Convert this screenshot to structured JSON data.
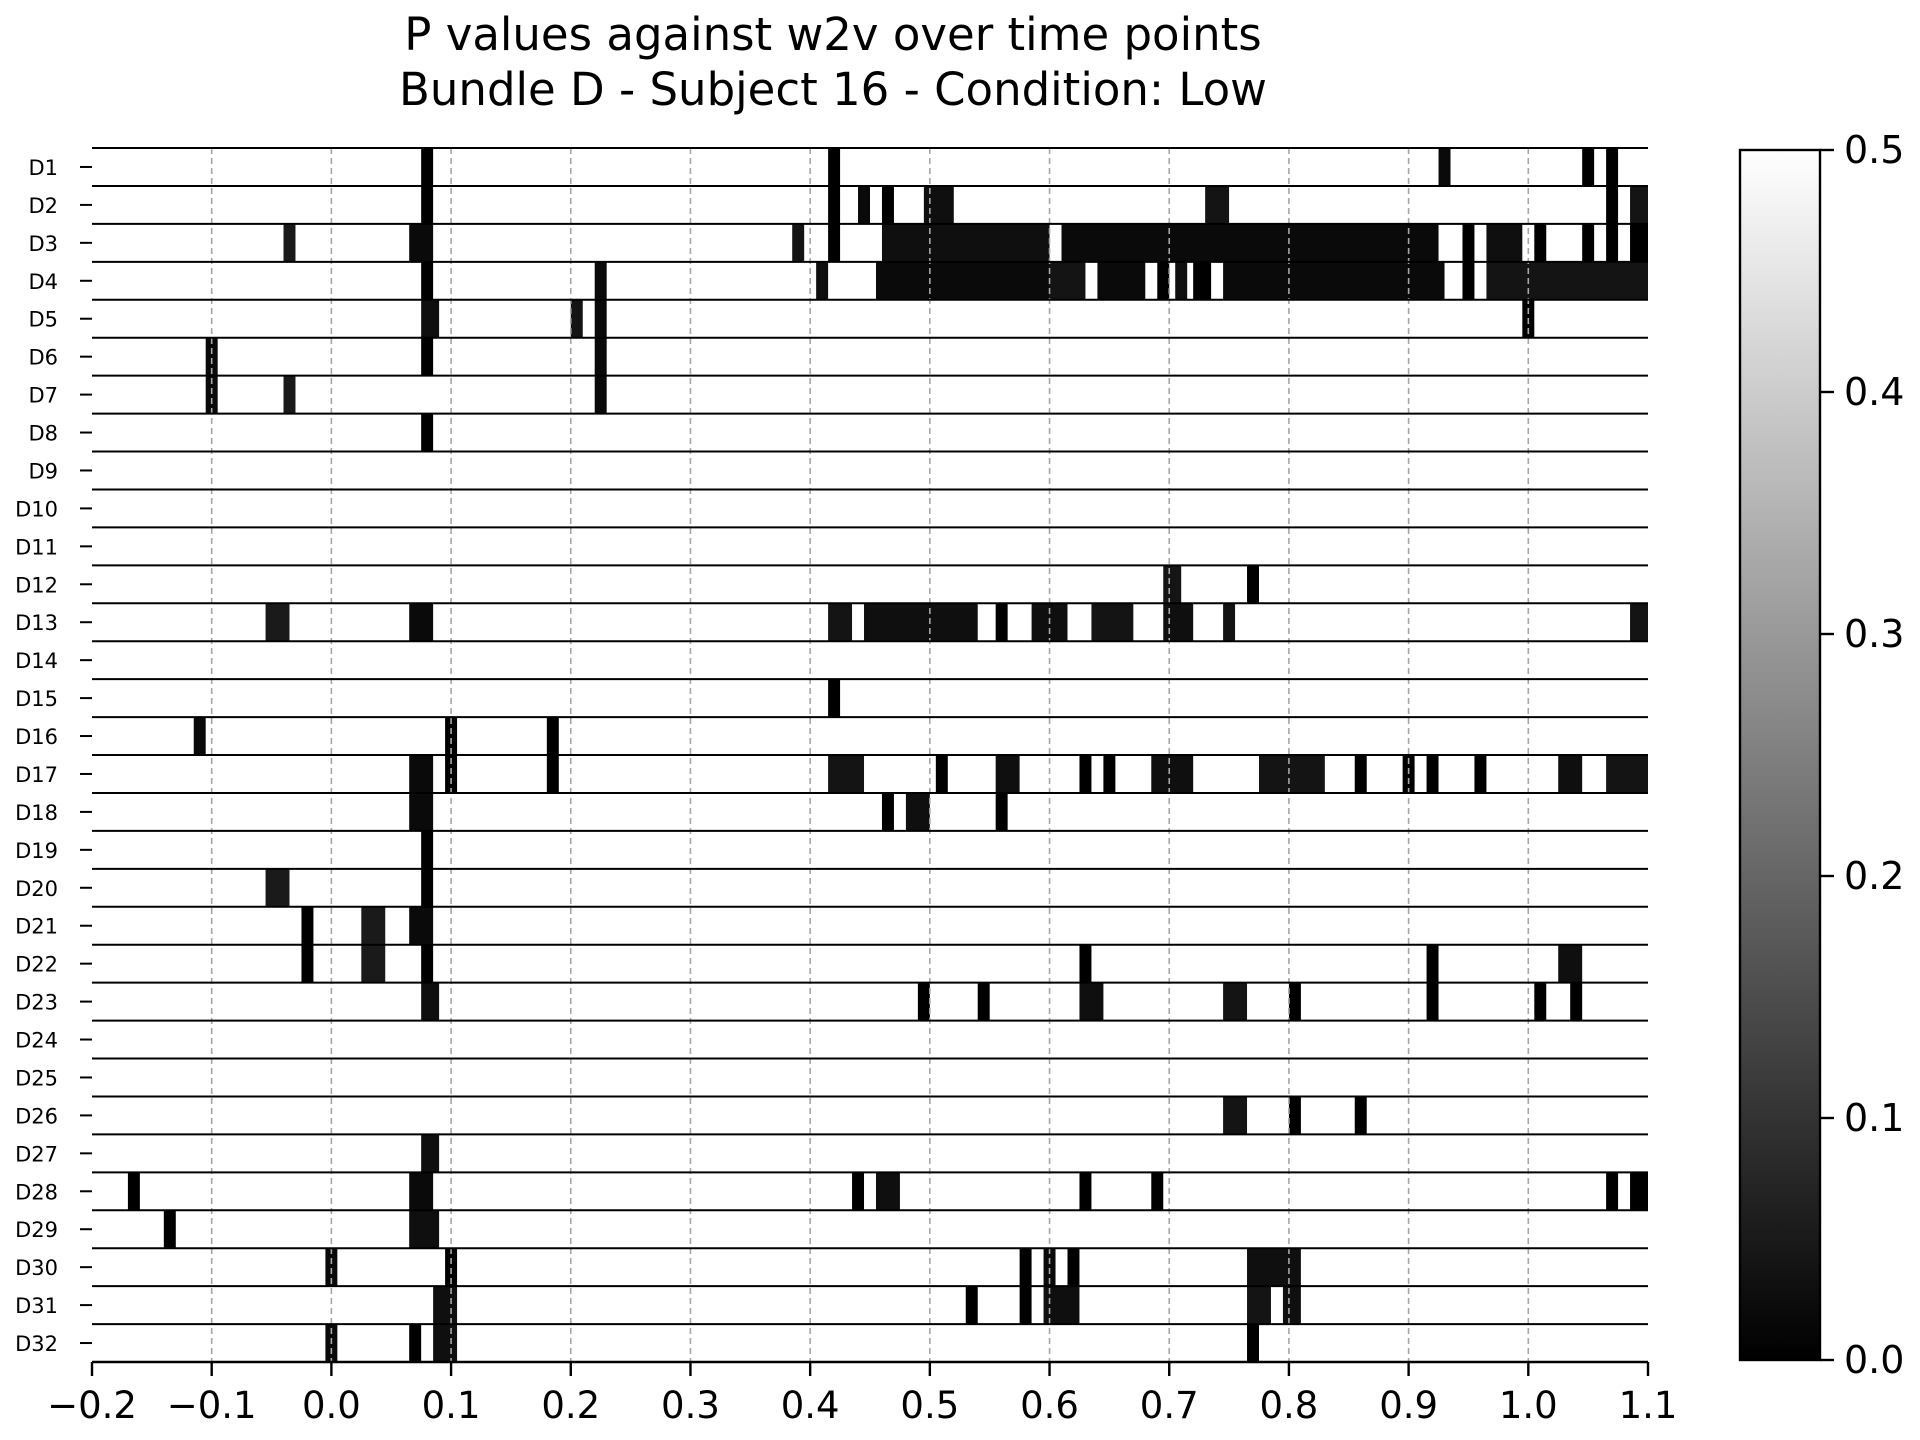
{
  "chart_data": {
    "type": "heatmap",
    "title": "P values against w2v over time points",
    "subtitle": "Bundle D - Subject 16 - Condition: Low",
    "xlabel": "",
    "ylabel": "",
    "xlim": [
      -0.2,
      1.1
    ],
    "x_ticks": [
      "−0.2",
      "−0.1",
      "0.0",
      "0.1",
      "0.2",
      "0.3",
      "0.4",
      "0.5",
      "0.6",
      "0.7",
      "0.8",
      "0.9",
      "1.0",
      "1.1"
    ],
    "x_tick_values": [
      -0.2,
      -0.1,
      0.0,
      0.1,
      0.2,
      0.3,
      0.4,
      0.5,
      0.6,
      0.7,
      0.8,
      0.9,
      1.0,
      1.1
    ],
    "grid": "vertical dashed gray at x ticks",
    "colormap": "grayscale (black = 0.0, white = 0.5)",
    "colorbar": {
      "min": 0.0,
      "max": 0.5,
      "ticks": [
        "0.0",
        "0.1",
        "0.2",
        "0.3",
        "0.4",
        "0.5"
      ],
      "tick_values": [
        0.0,
        0.1,
        0.2,
        0.3,
        0.4,
        0.5
      ],
      "placement": "right"
    },
    "default_value": 0.5,
    "rows": [
      {
        "label": "D1",
        "segments": [
          [
            0.075,
            0.085,
            0.0
          ],
          [
            0.415,
            0.425,
            0.0
          ],
          [
            0.925,
            0.935,
            0.02
          ],
          [
            1.045,
            1.055,
            0.0
          ],
          [
            1.065,
            1.075,
            0.0
          ]
        ]
      },
      {
        "label": "D2",
        "segments": [
          [
            0.075,
            0.085,
            0.0
          ],
          [
            0.415,
            0.425,
            0.0
          ],
          [
            0.44,
            0.45,
            0.02
          ],
          [
            0.46,
            0.47,
            0.0
          ],
          [
            0.495,
            0.52,
            0.03
          ],
          [
            0.73,
            0.75,
            0.04
          ],
          [
            1.065,
            1.075,
            0.0
          ],
          [
            1.085,
            1.1,
            0.04
          ]
        ]
      },
      {
        "label": "D3",
        "segments": [
          [
            -0.04,
            -0.03,
            0.05
          ],
          [
            0.065,
            0.085,
            0.02
          ],
          [
            0.385,
            0.395,
            0.04
          ],
          [
            0.415,
            0.425,
            0.0
          ],
          [
            0.46,
            0.6,
            0.03
          ],
          [
            0.61,
            0.925,
            0.02
          ],
          [
            0.945,
            0.955,
            0.0
          ],
          [
            0.965,
            0.995,
            0.03
          ],
          [
            1.005,
            1.015,
            0.0
          ],
          [
            1.045,
            1.055,
            0.0
          ],
          [
            1.065,
            1.075,
            0.0
          ],
          [
            1.085,
            1.1,
            0.0
          ]
        ]
      },
      {
        "label": "D4",
        "segments": [
          [
            0.075,
            0.085,
            0.0
          ],
          [
            0.22,
            0.23,
            0.02
          ],
          [
            0.405,
            0.415,
            0.03
          ],
          [
            0.455,
            0.6,
            0.02
          ],
          [
            0.6,
            0.63,
            0.04
          ],
          [
            0.64,
            0.68,
            0.02
          ],
          [
            0.69,
            0.7,
            0.0
          ],
          [
            0.705,
            0.715,
            0.03
          ],
          [
            0.72,
            0.735,
            0.0
          ],
          [
            0.745,
            0.93,
            0.02
          ],
          [
            0.945,
            0.955,
            0.0
          ],
          [
            0.965,
            1.1,
            0.04
          ]
        ]
      },
      {
        "label": "D5",
        "segments": [
          [
            0.075,
            0.09,
            0.03
          ],
          [
            0.2,
            0.21,
            0.04
          ],
          [
            0.22,
            0.23,
            0.02
          ],
          [
            0.995,
            1.005,
            0.0
          ]
        ]
      },
      {
        "label": "D6",
        "segments": [
          [
            -0.105,
            -0.095,
            0.02
          ],
          [
            0.075,
            0.085,
            0.0
          ],
          [
            0.22,
            0.23,
            0.02
          ]
        ]
      },
      {
        "label": "D7",
        "segments": [
          [
            -0.105,
            -0.095,
            0.02
          ],
          [
            -0.04,
            -0.03,
            0.05
          ],
          [
            0.22,
            0.23,
            0.02
          ]
        ]
      },
      {
        "label": "D8",
        "segments": [
          [
            0.075,
            0.085,
            0.0
          ]
        ]
      },
      {
        "label": "D9",
        "segments": []
      },
      {
        "label": "D10",
        "segments": []
      },
      {
        "label": "D11",
        "segments": []
      },
      {
        "label": "D12",
        "segments": [
          [
            0.695,
            0.71,
            0.04
          ],
          [
            0.765,
            0.775,
            0.0
          ]
        ]
      },
      {
        "label": "D13",
        "segments": [
          [
            -0.055,
            -0.035,
            0.05
          ],
          [
            0.065,
            0.085,
            0.02
          ],
          [
            0.415,
            0.435,
            0.04
          ],
          [
            0.445,
            0.54,
            0.03
          ],
          [
            0.555,
            0.565,
            0.0
          ],
          [
            0.585,
            0.615,
            0.03
          ],
          [
            0.635,
            0.67,
            0.04
          ],
          [
            0.695,
            0.72,
            0.03
          ],
          [
            0.745,
            0.755,
            0.04
          ],
          [
            1.085,
            1.1,
            0.04
          ]
        ]
      },
      {
        "label": "D14",
        "segments": []
      },
      {
        "label": "D15",
        "segments": [
          [
            0.415,
            0.425,
            0.0
          ]
        ]
      },
      {
        "label": "D16",
        "segments": [
          [
            -0.115,
            -0.105,
            0.02
          ],
          [
            0.095,
            0.105,
            0.0
          ],
          [
            0.18,
            0.19,
            0.0
          ]
        ]
      },
      {
        "label": "D17",
        "segments": [
          [
            0.065,
            0.085,
            0.02
          ],
          [
            0.095,
            0.105,
            0.0
          ],
          [
            0.18,
            0.19,
            0.0
          ],
          [
            0.415,
            0.445,
            0.04
          ],
          [
            0.505,
            0.515,
            0.0
          ],
          [
            0.555,
            0.575,
            0.03
          ],
          [
            0.625,
            0.635,
            0.0
          ],
          [
            0.645,
            0.655,
            0.0
          ],
          [
            0.685,
            0.72,
            0.03
          ],
          [
            0.775,
            0.83,
            0.04
          ],
          [
            0.855,
            0.865,
            0.0
          ],
          [
            0.895,
            0.905,
            0.0
          ],
          [
            0.915,
            0.925,
            0.0
          ],
          [
            0.955,
            0.965,
            0.0
          ],
          [
            1.025,
            1.045,
            0.03
          ],
          [
            1.065,
            1.1,
            0.04
          ]
        ]
      },
      {
        "label": "D18",
        "segments": [
          [
            0.065,
            0.085,
            0.02
          ],
          [
            0.46,
            0.47,
            0.0
          ],
          [
            0.48,
            0.5,
            0.03
          ],
          [
            0.555,
            0.565,
            0.0
          ]
        ]
      },
      {
        "label": "D19",
        "segments": [
          [
            0.075,
            0.085,
            0.0
          ]
        ]
      },
      {
        "label": "D20",
        "segments": [
          [
            -0.055,
            -0.035,
            0.05
          ],
          [
            0.075,
            0.085,
            0.0
          ]
        ]
      },
      {
        "label": "D21",
        "segments": [
          [
            -0.025,
            -0.015,
            0.0
          ],
          [
            0.025,
            0.045,
            0.05
          ],
          [
            0.065,
            0.085,
            0.02
          ]
        ]
      },
      {
        "label": "D22",
        "segments": [
          [
            -0.025,
            -0.015,
            0.0
          ],
          [
            0.025,
            0.045,
            0.05
          ],
          [
            0.075,
            0.085,
            0.0
          ],
          [
            0.625,
            0.635,
            0.0
          ],
          [
            0.915,
            0.925,
            0.0
          ],
          [
            1.025,
            1.045,
            0.03
          ]
        ]
      },
      {
        "label": "D23",
        "segments": [
          [
            0.075,
            0.09,
            0.03
          ],
          [
            0.49,
            0.5,
            0.0
          ],
          [
            0.54,
            0.55,
            0.0
          ],
          [
            0.625,
            0.645,
            0.03
          ],
          [
            0.745,
            0.765,
            0.04
          ],
          [
            0.8,
            0.81,
            0.0
          ],
          [
            0.915,
            0.925,
            0.0
          ],
          [
            1.005,
            1.015,
            0.0
          ],
          [
            1.035,
            1.045,
            0.0
          ]
        ]
      },
      {
        "label": "D24",
        "segments": []
      },
      {
        "label": "D25",
        "segments": []
      },
      {
        "label": "D26",
        "segments": [
          [
            0.745,
            0.765,
            0.04
          ],
          [
            0.8,
            0.81,
            0.0
          ],
          [
            0.855,
            0.865,
            0.0
          ]
        ]
      },
      {
        "label": "D27",
        "segments": [
          [
            0.075,
            0.09,
            0.03
          ]
        ]
      },
      {
        "label": "D28",
        "segments": [
          [
            -0.17,
            -0.16,
            0.0
          ],
          [
            0.065,
            0.085,
            0.02
          ],
          [
            0.435,
            0.445,
            0.0
          ],
          [
            0.455,
            0.475,
            0.03
          ],
          [
            0.625,
            0.635,
            0.0
          ],
          [
            0.685,
            0.695,
            0.0
          ],
          [
            1.065,
            1.075,
            0.0
          ],
          [
            1.085,
            1.1,
            0.0
          ]
        ]
      },
      {
        "label": "D29",
        "segments": [
          [
            -0.14,
            -0.13,
            0.0
          ],
          [
            0.065,
            0.09,
            0.03
          ]
        ]
      },
      {
        "label": "D30",
        "segments": [
          [
            -0.005,
            0.005,
            0.02
          ],
          [
            0.095,
            0.105,
            0.0
          ],
          [
            0.575,
            0.585,
            0.0
          ],
          [
            0.595,
            0.605,
            0.02
          ],
          [
            0.615,
            0.625,
            0.0
          ],
          [
            0.765,
            0.81,
            0.03
          ]
        ]
      },
      {
        "label": "D31",
        "segments": [
          [
            0.085,
            0.105,
            0.03
          ],
          [
            0.53,
            0.54,
            0.0
          ],
          [
            0.575,
            0.585,
            0.0
          ],
          [
            0.595,
            0.625,
            0.03
          ],
          [
            0.765,
            0.785,
            0.04
          ],
          [
            0.795,
            0.81,
            0.03
          ]
        ]
      },
      {
        "label": "D32",
        "segments": [
          [
            -0.005,
            0.005,
            0.02
          ],
          [
            0.065,
            0.075,
            0.0
          ],
          [
            0.085,
            0.105,
            0.03
          ],
          [
            0.765,
            0.775,
            0.0
          ]
        ]
      }
    ]
  }
}
